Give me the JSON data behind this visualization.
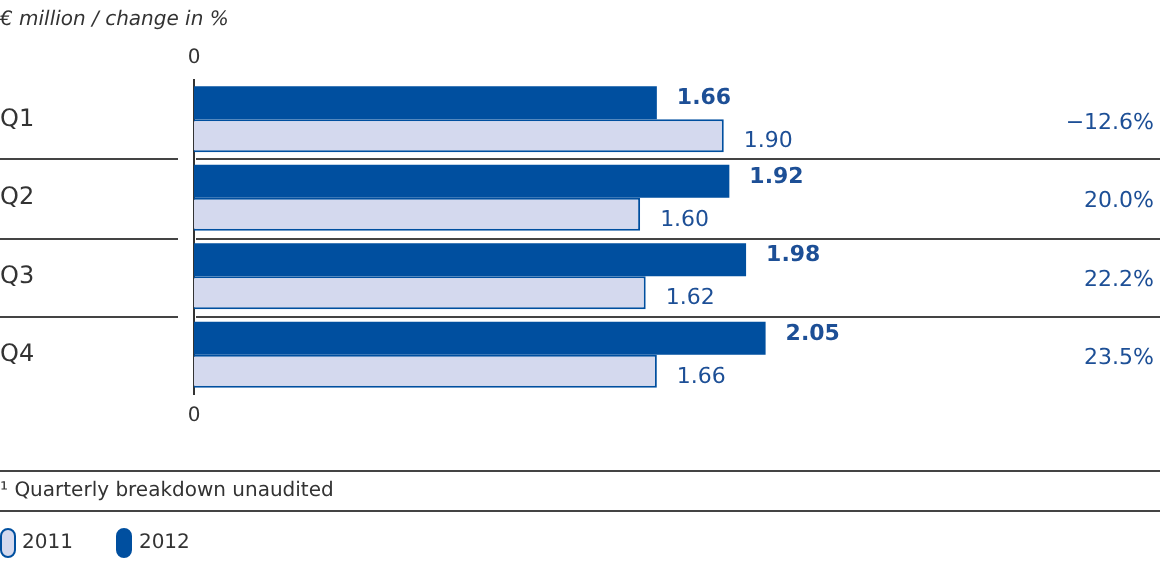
{
  "chart_data": {
    "type": "bar",
    "orientation": "horizontal",
    "title": "€ million / change in %",
    "categories": [
      "Q1",
      "Q2",
      "Q3",
      "Q4"
    ],
    "series": [
      {
        "name": "2012",
        "color": "#004f9f",
        "values": [
          1.66,
          1.92,
          1.98,
          2.05
        ],
        "value_labels": [
          "1.66",
          "1.92",
          "1.98",
          "2.05"
        ]
      },
      {
        "name": "2011",
        "color": "#d4d9ee",
        "values": [
          1.9,
          1.6,
          1.62,
          1.66
        ],
        "value_labels": [
          "1.90",
          "1.60",
          "1.62",
          "1.66"
        ]
      }
    ],
    "grid": "y",
    "legend": "bottom left",
    "annotations": [
      "0",
      "0",
      "−12.6%",
      "20.0%",
      "22.2%",
      "23.5%",
      "¹ Quarterly breakdown unaudited"
    ]
  }
}
